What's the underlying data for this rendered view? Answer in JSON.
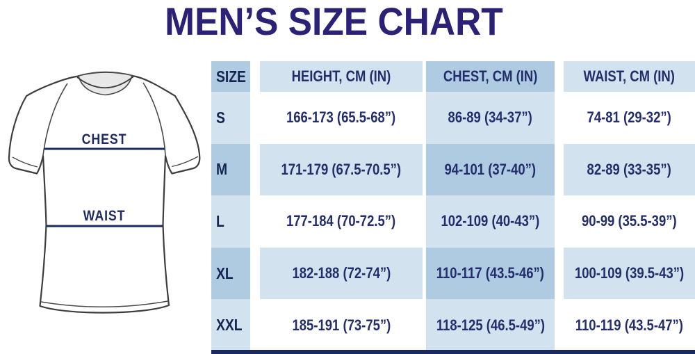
{
  "title": "MEN’S SIZE CHART",
  "diagram": {
    "chest_label": "CHEST",
    "waist_label": "WAIST"
  },
  "table": {
    "headers": [
      "SIZE",
      "HEIGHT, CM (IN)",
      "CHEST, CM (IN)",
      "WAIST, CM (IN)"
    ],
    "rows": [
      {
        "size": "S",
        "height": "166-173 (65.5-68”)",
        "chest": "86-89 (34-37”)",
        "waist": "74-81 (29-32”)"
      },
      {
        "size": "M",
        "height": "171-179 (67.5-70.5”)",
        "chest": "94-101 (37-40”)",
        "waist": "82-89 (33-35”)"
      },
      {
        "size": "L",
        "height": "177-184 (70-72.5”)",
        "chest": "102-109 (40-43”)",
        "waist": "90-99 (35.5-39”)"
      },
      {
        "size": "XL",
        "height": "182-188 (72-74”)",
        "chest": "110-117 (43.5-46”)",
        "waist": "100-109 (39.5-43”)"
      },
      {
        "size": "XXL",
        "height": "185-191 (73-75”)",
        "chest": "118-125 (46.5-49”)",
        "waist": "110-119 (43.5-47”)"
      }
    ]
  },
  "colors": {
    "title_text": "#2b2277",
    "table_text": "#232d6b",
    "header_text": "#152450",
    "tint_light": "#d3e2ef",
    "tint_dark": "#aecbe1",
    "measure_line": "#1f2a5e",
    "bottom_bar": "#1b2a5e"
  },
  "chart_data": {
    "type": "table",
    "title": "MEN’S SIZE CHART",
    "columns": [
      "SIZE",
      "HEIGHT, CM (IN)",
      "CHEST, CM (IN)",
      "WAIST, CM (IN)"
    ],
    "rows": [
      [
        "S",
        "166-173 (65.5-68”)",
        "86-89 (34-37”)",
        "74-81 (29-32”)"
      ],
      [
        "M",
        "171-179 (67.5-70.5”)",
        "94-101 (37-40”)",
        "82-89 (33-35”)"
      ],
      [
        "L",
        "177-184 (70-72.5”)",
        "102-109 (40-43”)",
        "90-99 (35.5-39”)"
      ],
      [
        "XL",
        "182-188 (72-74”)",
        "110-117 (43.5-46”)",
        "100-109 (39.5-43”)"
      ],
      [
        "XXL",
        "185-191 (73-75”)",
        "118-125 (46.5-49”)",
        "110-119 (43.5-47”)"
      ]
    ],
    "layout": "SIZE and CHEST columns tinted; rows M and XL tinted; intersections darker"
  }
}
